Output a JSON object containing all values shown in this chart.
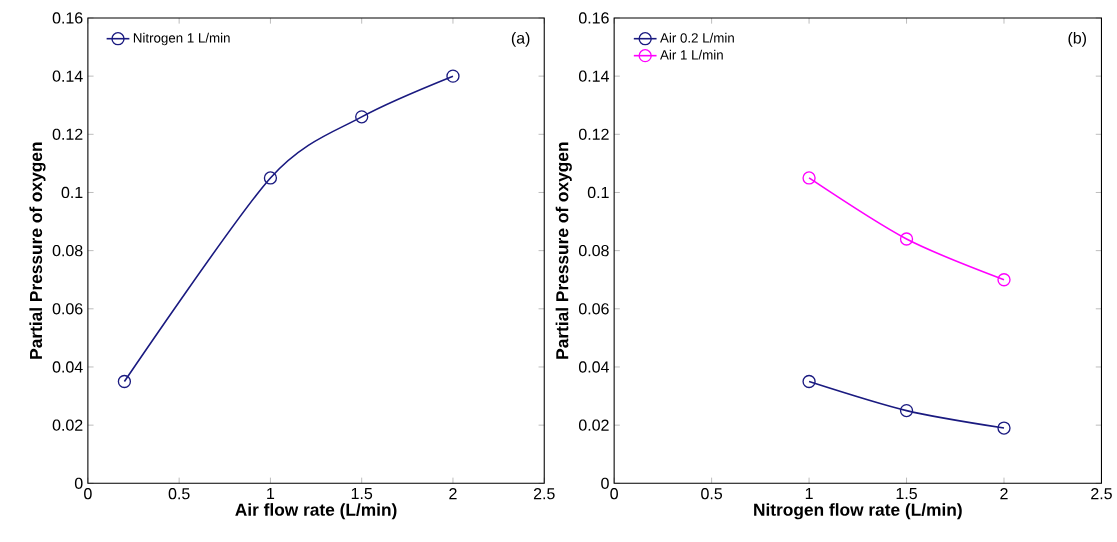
{
  "chart_data": [
    {
      "type": "line",
      "xlabel": "Air flow rate (L/min)",
      "ylabel": "Partial Pressure of oxygen",
      "annotations": [
        "(a)"
      ],
      "marker": "circle",
      "legend": "top left",
      "xlim": [
        0,
        2.5
      ],
      "ylim": [
        0,
        0.16
      ],
      "xticks": [
        0,
        0.5,
        1,
        1.5,
        2,
        2.5
      ],
      "yticks": [
        0,
        0.02,
        0.04,
        0.06,
        0.08,
        0.1,
        0.12,
        0.14,
        0.16
      ],
      "series": [
        {
          "name": "Nitrogen 1 L/min",
          "color": "#1a1a80",
          "x": [
            0.2,
            1,
            1.5,
            2
          ],
          "values": [
            0.035,
            0.105,
            0.126,
            0.14
          ]
        }
      ]
    },
    {
      "type": "line",
      "xlabel": "Nitrogen flow rate (L/min)",
      "ylabel": "Partial Pressure of oxygen",
      "annotations": [
        "(b)"
      ],
      "marker": "circle",
      "legend": "top left",
      "xlim": [
        0,
        2.5
      ],
      "ylim": [
        0,
        0.16
      ],
      "xticks": [
        0,
        0.5,
        1,
        1.5,
        2,
        2.5
      ],
      "yticks": [
        0,
        0.02,
        0.04,
        0.06,
        0.08,
        0.1,
        0.12,
        0.14,
        0.16
      ],
      "series": [
        {
          "name": "Air 0.2 L/min",
          "color": "#1a1a80",
          "x": [
            1,
            1.5,
            2
          ],
          "values": [
            0.035,
            0.025,
            0.019
          ]
        },
        {
          "name": "Air 1 L/min",
          "color": "#ff00ff",
          "x": [
            1,
            1.5,
            2
          ],
          "values": [
            0.105,
            0.084,
            0.07
          ]
        }
      ]
    }
  ]
}
